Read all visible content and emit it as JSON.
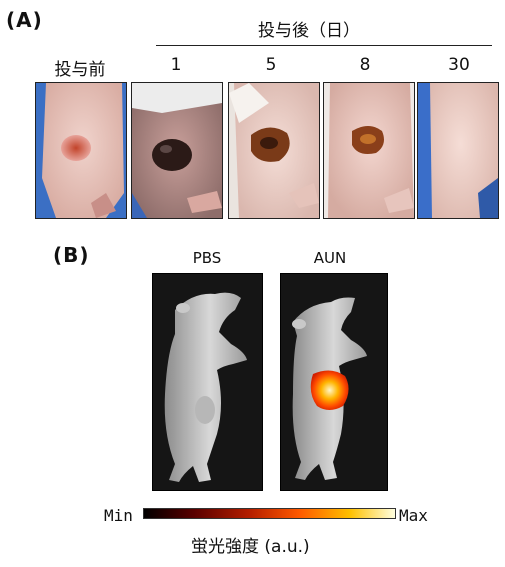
{
  "panel_a": {
    "label": "(A)",
    "header": "投与後（日）",
    "pre_label": "投与前",
    "days": [
      "1",
      "5",
      "8",
      "30"
    ]
  },
  "panel_b": {
    "label": "(B)",
    "mice": [
      "PBS",
      "AUN"
    ],
    "scale_min": "Min",
    "scale_max": "Max",
    "scale_title": "蛍光強度 (a.u.)"
  },
  "colors": {
    "glove_blue": "#3b6fc4",
    "skin_pink": "#e9c6bf",
    "lesion_red": "#b8452e",
    "lesion_dark": "#2b1a17",
    "scab_brown": "#7a3a18",
    "hot_core": "#fff6c8",
    "hot_edge": "#d21e00"
  },
  "icons": [
    "mouse-photo",
    "fluorescence-signal"
  ]
}
